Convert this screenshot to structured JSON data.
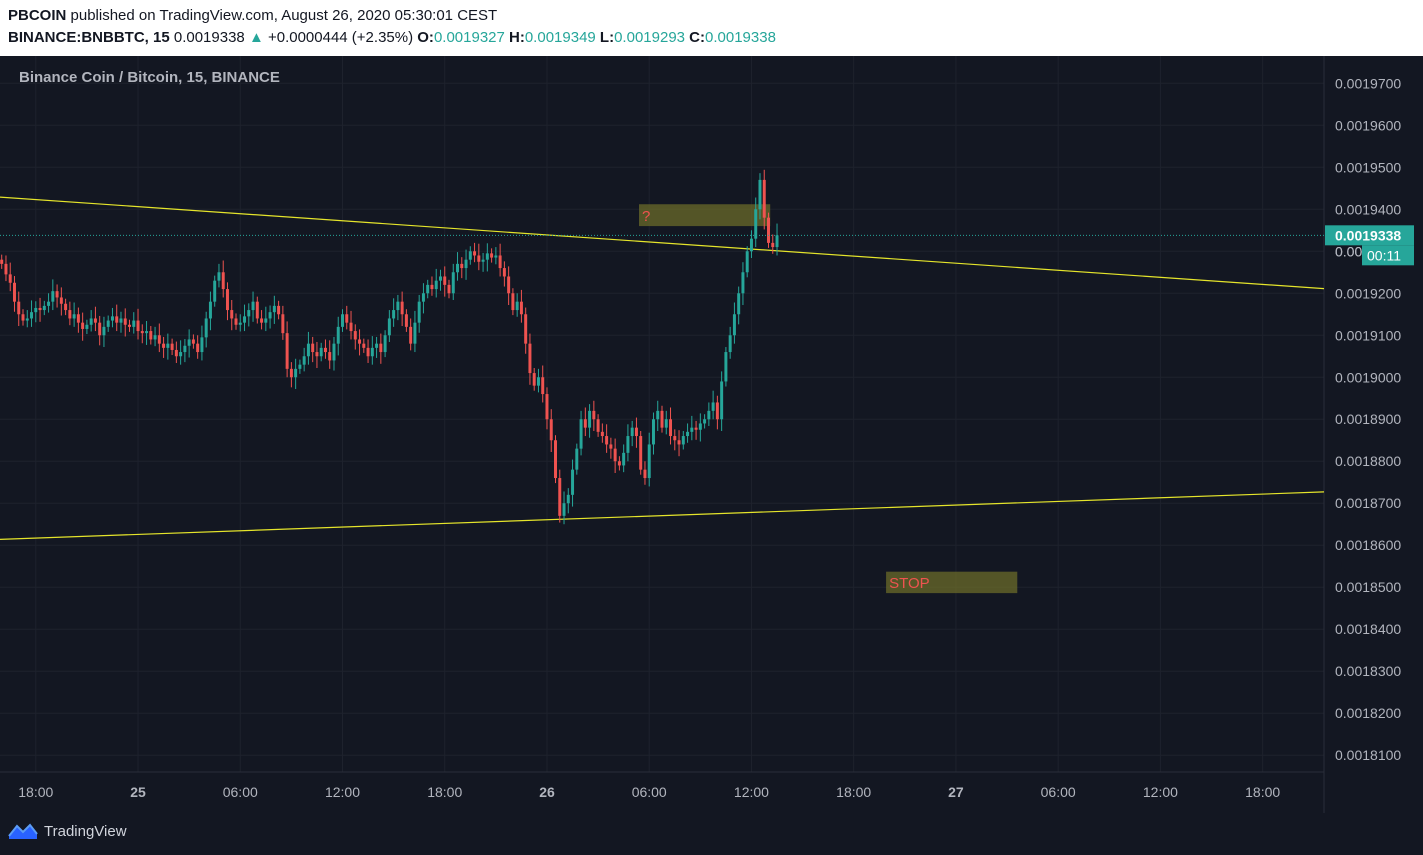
{
  "header": {
    "publisher": "PBCOIN",
    "published_text": "published on TradingView.com, August 26, 2020 05:30:01 CEST",
    "symbol": "BINANCE:BNBBTC, 15",
    "last_price": "0.0019338",
    "change": "+0.0000444 (+2.35%)",
    "open_label": "O:",
    "open": "0.0019327",
    "high_label": "H:",
    "high": "0.0019349",
    "low_label": "L:",
    "low": "0.0019293",
    "close_label": "C:",
    "close": "0.0019338"
  },
  "footer": {
    "brand": "TradingView"
  },
  "colors": {
    "background": "#131722",
    "up": "#26a69a",
    "down": "#ef5350",
    "trendline": "#e5e52b",
    "grid": "#1e222d",
    "axis_text": "#b2b5be"
  },
  "chart_data": {
    "type": "candlestick",
    "title": "Binance Coin / Bitcoin, 15, BINANCE",
    "ylim": [
      0.001806,
      0.0019765
    ],
    "y_ticks": [
      "0.0019700",
      "0.0019600",
      "0.0019500",
      "0.0019400",
      "0.0019300",
      "0.0019200",
      "0.0019100",
      "0.0019000",
      "0.0018900",
      "0.0018800",
      "0.0018700",
      "0.0018600",
      "0.0018500",
      "0.0018400",
      "0.0018300",
      "0.0018200",
      "0.0018100"
    ],
    "x_ticks": [
      {
        "label": "18:00",
        "t": -6,
        "bold": false
      },
      {
        "label": "25",
        "t": 0,
        "bold": true
      },
      {
        "label": "06:00",
        "t": 6,
        "bold": false
      },
      {
        "label": "12:00",
        "t": 12,
        "bold": false
      },
      {
        "label": "18:00",
        "t": 18,
        "bold": false
      },
      {
        "label": "26",
        "t": 24,
        "bold": true
      },
      {
        "label": "06:00",
        "t": 30,
        "bold": false
      },
      {
        "label": "12:00",
        "t": 36,
        "bold": false
      },
      {
        "label": "18:00",
        "t": 42,
        "bold": false
      },
      {
        "label": "27",
        "t": 48,
        "bold": true
      },
      {
        "label": "06:00",
        "t": 54,
        "bold": false
      },
      {
        "label": "12:00",
        "t": 60,
        "bold": false
      },
      {
        "label": "18:00",
        "t": 66,
        "bold": false
      }
    ],
    "x_range_hours": [
      -8.1,
      69.6
    ],
    "bar_interval_hours": 0.25,
    "first_bar_hours": -8.0,
    "closes": [
      0.001927,
      0.0019245,
      0.0019225,
      0.001918,
      0.001915,
      0.0019135,
      0.001914,
      0.0019155,
      0.0019165,
      0.001916,
      0.001917,
      0.001918,
      0.0019205,
      0.001919,
      0.0019175,
      0.001916,
      0.001914,
      0.001915,
      0.001913,
      0.0019115,
      0.0019125,
      0.001914,
      0.001913,
      0.00191,
      0.001912,
      0.0019135,
      0.0019145,
      0.001913,
      0.001914,
      0.0019125,
      0.001912,
      0.0019135,
      0.001911,
      0.0019105,
      0.001911,
      0.001909,
      0.00191,
      0.001908,
      0.001907,
      0.001908,
      0.0019065,
      0.001905,
      0.001906,
      0.0019075,
      0.001909,
      0.001908,
      0.001906,
      0.0019095,
      0.001914,
      0.001918,
      0.001923,
      0.001925,
      0.001921,
      0.001916,
      0.001914,
      0.0019125,
      0.001913,
      0.0019145,
      0.001916,
      0.001918,
      0.001914,
      0.001913,
      0.001914,
      0.0019155,
      0.001917,
      0.001915,
      0.0019105,
      0.001902,
      0.0019,
      0.001902,
      0.001903,
      0.001905,
      0.001908,
      0.001906,
      0.001905,
      0.001907,
      0.001906,
      0.001904,
      0.001908,
      0.001912,
      0.001915,
      0.001913,
      0.001911,
      0.001909,
      0.001908,
      0.001907,
      0.001905,
      0.001907,
      0.001908,
      0.001906,
      0.00191,
      0.001914,
      0.001916,
      0.001918,
      0.001915,
      0.001912,
      0.001908,
      0.001913,
      0.001918,
      0.00192,
      0.001922,
      0.001921,
      0.001923,
      0.001924,
      0.001922,
      0.00192,
      0.001925,
      0.001927,
      0.001926,
      0.001928,
      0.00193,
      0.001929,
      0.0019275,
      0.001928,
      0.0019295,
      0.0019285,
      0.001929,
      0.001926,
      0.001924,
      0.00192,
      0.001916,
      0.001918,
      0.001915,
      0.001908,
      0.001901,
      0.001898,
      0.0019,
      0.001896,
      0.00189,
      0.001885,
      0.001876,
      0.001867,
      0.00187,
      0.001872,
      0.001878,
      0.001883,
      0.00189,
      0.001888,
      0.001892,
      0.00189,
      0.001887,
      0.001886,
      0.001884,
      0.001883,
      0.00188,
      0.001879,
      0.001882,
      0.001886,
      0.001888,
      0.001886,
      0.001878,
      0.001876,
      0.001884,
      0.00189,
      0.001892,
      0.001888,
      0.00189,
      0.001886,
      0.001885,
      0.001884,
      0.001886,
      0.001887,
      0.001888,
      0.0018875,
      0.001889,
      0.00189,
      0.001892,
      0.001894,
      0.00189,
      0.001899,
      0.001906,
      0.00191,
      0.001915,
      0.00192,
      0.001925,
      0.00193,
      0.001933,
      0.00194,
      0.001947,
      0.001938,
      0.001932,
      0.001931,
      0.0019338
    ],
    "trendlines": [
      {
        "t1": -8.1,
        "p1": 0.0019429,
        "t2": 69.6,
        "p2": 0.0019211
      },
      {
        "t1": -8.1,
        "p1": 0.0018614,
        "t2": 69.6,
        "p2": 0.0018727
      }
    ],
    "boxes": [
      {
        "label": "?",
        "t1": 29.4,
        "t2": 37.1,
        "p1": 0.0019412,
        "p2": 0.001936,
        "fill": "#6b6b2a"
      },
      {
        "label": "STOP",
        "t1": 43.9,
        "t2": 51.6,
        "p1": 0.0018537,
        "p2": 0.0018486,
        "fill": "#6b6b2a"
      }
    ],
    "last_price_label": "0.0019338",
    "last_price": 0.0019338,
    "countdown": "00:11",
    "hidden_tick_label": "0.00",
    "hidden_tick_price": 0.00193
  }
}
